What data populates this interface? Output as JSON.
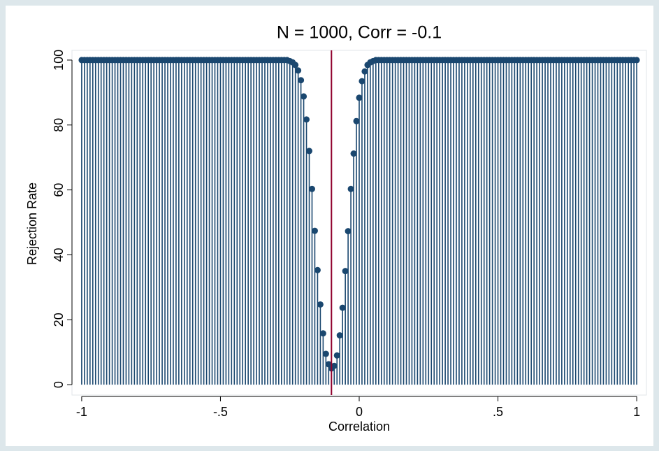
{
  "chart_data": {
    "type": "dropline",
    "title": "N = 1000, Corr = -0.1",
    "xlabel": "Correlation",
    "ylabel": "Rejection Rate",
    "x": [
      -1,
      -0.99,
      -0.98,
      -0.97,
      -0.96,
      -0.95,
      -0.94,
      -0.93,
      -0.92,
      -0.91,
      -0.9,
      -0.89,
      -0.88,
      -0.87,
      -0.86,
      -0.85,
      -0.84,
      -0.83,
      -0.82,
      -0.81,
      -0.8,
      -0.79,
      -0.78,
      -0.77,
      -0.76,
      -0.75,
      -0.74,
      -0.73,
      -0.72,
      -0.71,
      -0.7,
      -0.69,
      -0.68,
      -0.67,
      -0.66,
      -0.65,
      -0.64,
      -0.63,
      -0.62,
      -0.61,
      -0.6,
      -0.59,
      -0.58,
      -0.57,
      -0.56,
      -0.55,
      -0.54,
      -0.53,
      -0.52,
      -0.51,
      -0.5,
      -0.49,
      -0.48,
      -0.47,
      -0.46,
      -0.45,
      -0.44,
      -0.43,
      -0.42,
      -0.41,
      -0.4,
      -0.39,
      -0.38,
      -0.37,
      -0.36,
      -0.35,
      -0.34,
      -0.33,
      -0.32,
      -0.31,
      -0.3,
      -0.29,
      -0.28,
      -0.27,
      -0.26,
      -0.25,
      -0.24,
      -0.23,
      -0.22,
      -0.21,
      -0.2,
      -0.19,
      -0.18,
      -0.17,
      -0.16,
      -0.15,
      -0.14,
      -0.13,
      -0.12,
      -0.11,
      -0.1,
      -0.09,
      -0.08,
      -0.07,
      -0.06,
      -0.05,
      -0.04,
      -0.03,
      -0.02,
      -0.01,
      0,
      0.01,
      0.02,
      0.03,
      0.04,
      0.05,
      0.06,
      0.07,
      0.08,
      0.09,
      0.1,
      0.11,
      0.12,
      0.13,
      0.14,
      0.15,
      0.16,
      0.17,
      0.18,
      0.19,
      0.2,
      0.21,
      0.22,
      0.23,
      0.24,
      0.25,
      0.26,
      0.27,
      0.28,
      0.29,
      0.3,
      0.31,
      0.32,
      0.33,
      0.34,
      0.35,
      0.36,
      0.37,
      0.38,
      0.39,
      0.4,
      0.41,
      0.42,
      0.43,
      0.44,
      0.45,
      0.46,
      0.47,
      0.48,
      0.49,
      0.5,
      0.51,
      0.52,
      0.53,
      0.54,
      0.55,
      0.56,
      0.57,
      0.58,
      0.59,
      0.6,
      0.61,
      0.62,
      0.63,
      0.64,
      0.65,
      0.66,
      0.67,
      0.68,
      0.69,
      0.7,
      0.71,
      0.72,
      0.73,
      0.74,
      0.75,
      0.76,
      0.77,
      0.78,
      0.79,
      0.8,
      0.81,
      0.82,
      0.83,
      0.84,
      0.85,
      0.86,
      0.87,
      0.88,
      0.89,
      0.9,
      0.91,
      0.92,
      0.93,
      0.94,
      0.95,
      0.96,
      0.97,
      0.98,
      0.99,
      1
    ],
    "values": [
      100,
      100,
      100,
      100,
      100,
      100,
      100,
      100,
      100,
      100,
      100,
      100,
      100,
      100,
      100,
      100,
      100,
      100,
      100,
      100,
      100,
      100,
      100,
      100,
      100,
      100,
      100,
      100,
      100,
      100,
      100,
      100,
      100,
      100,
      100,
      100,
      100,
      100,
      100,
      100,
      100,
      100,
      100,
      100,
      100,
      100,
      100,
      100,
      100,
      100,
      100,
      100,
      100,
      100,
      100,
      100,
      100,
      100,
      100,
      100,
      100,
      100,
      100,
      100,
      100,
      100,
      100,
      100,
      100,
      100,
      100,
      100,
      100,
      100,
      100,
      99.7,
      99.3,
      98.5,
      96.8,
      93.8,
      88.8,
      81.7,
      72,
      60.3,
      47.4,
      35.3,
      24.7,
      15.8,
      9.5,
      6.3,
      5,
      5.8,
      9,
      15.2,
      23.7,
      35,
      47.3,
      60.3,
      71.2,
      81.2,
      88.4,
      93.5,
      96.5,
      98.5,
      99.3,
      99.7,
      100,
      100,
      100,
      100,
      100,
      100,
      100,
      100,
      100,
      100,
      100,
      100,
      100,
      100,
      100,
      100,
      100,
      100,
      100,
      100,
      100,
      100,
      100,
      100,
      100,
      100,
      100,
      100,
      100,
      100,
      100,
      100,
      100,
      100,
      100,
      100,
      100,
      100,
      100,
      100,
      100,
      100,
      100,
      100,
      100,
      100,
      100,
      100,
      100,
      100,
      100,
      100,
      100,
      100,
      100,
      100,
      100,
      100,
      100,
      100,
      100,
      100,
      100,
      100,
      100,
      100,
      100,
      100,
      100,
      100,
      100,
      100,
      100,
      100,
      100,
      100,
      100,
      100,
      100,
      100,
      100,
      100,
      100,
      100,
      100,
      100,
      100,
      100,
      100,
      100,
      100,
      100,
      100,
      100,
      100
    ],
    "color": "#1a476f",
    "reference_line": -0.1,
    "reference_color": "#90002d",
    "xlim": [
      -1.035,
      1.035
    ],
    "ylim": [
      -3.2,
      103
    ],
    "xticks": [
      -1,
      {
        "value": -0.5,
        "label": "-.5"
      },
      0,
      {
        "value": 0.5,
        "label": ".5"
      },
      1
    ],
    "yticks": [
      0,
      20,
      40,
      60,
      80,
      100
    ]
  }
}
